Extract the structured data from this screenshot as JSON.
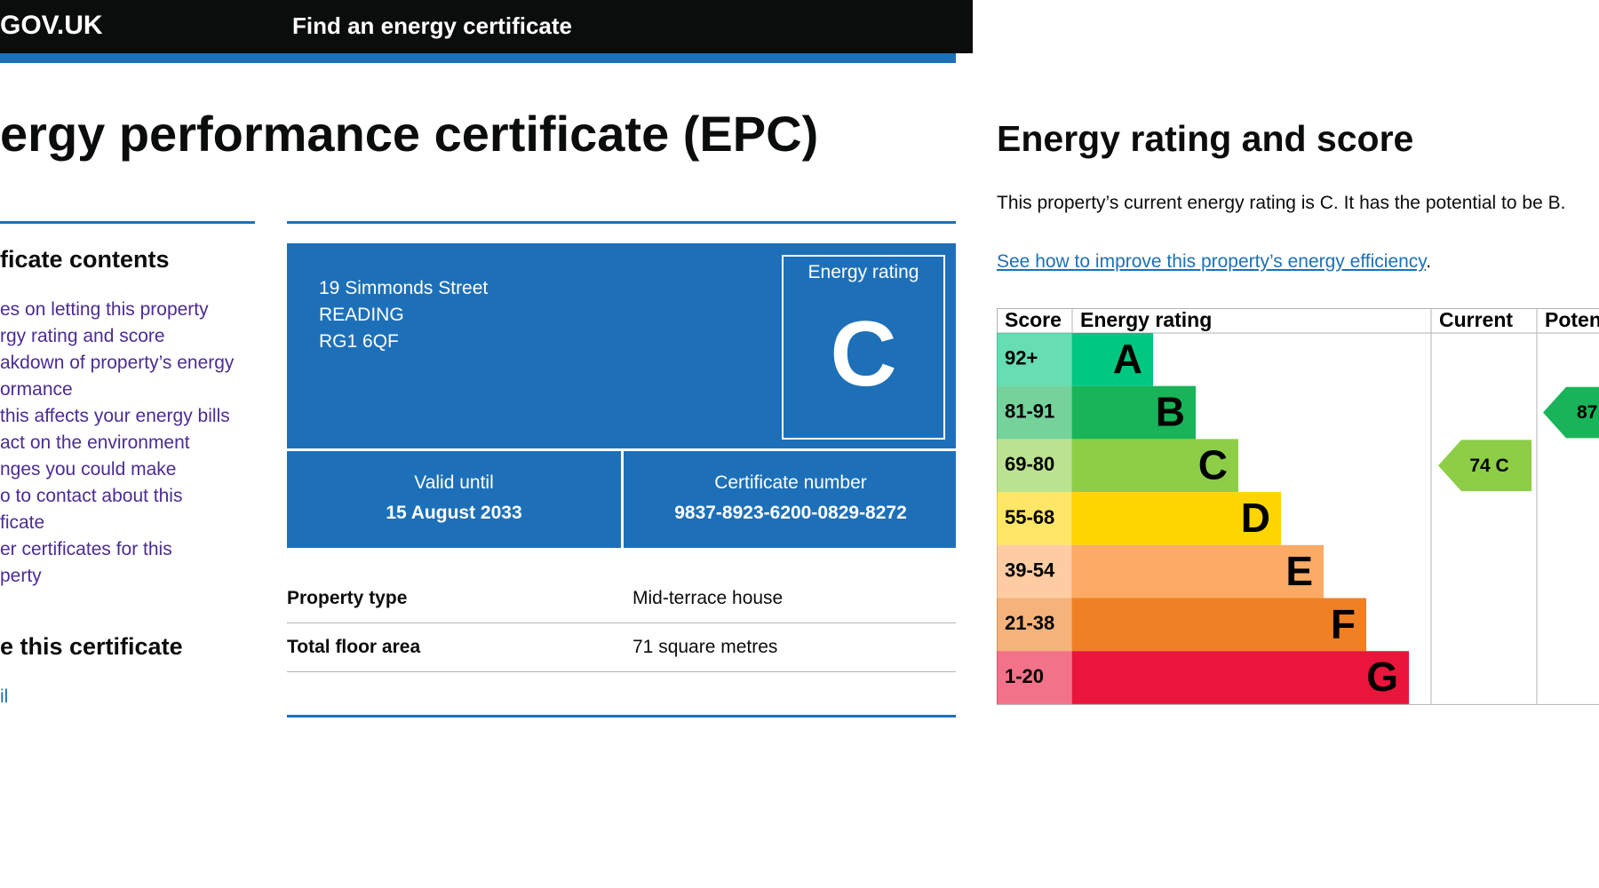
{
  "header": {
    "logo": "GOV.UK",
    "service": "Find an energy certificate"
  },
  "title": "ergy performance certificate (EPC)",
  "sidebar": {
    "heading": "ficate contents",
    "links": [
      "es on letting this property",
      "rgy rating and score",
      "akdown of property’s energy",
      "ormance",
      "this affects your energy bills",
      "act on the environment",
      "nges you could make",
      "o to contact about this",
      "ficate",
      "er certificates for this",
      "perty"
    ],
    "share_heading": "e this certificate",
    "share_links": [
      "il"
    ]
  },
  "summary": {
    "address": [
      "19 Simmonds Street",
      "READING",
      "RG1 6QF"
    ],
    "rating_label": "Energy rating",
    "rating": "C",
    "valid_label": "Valid until",
    "valid_until": "15 August 2033",
    "cert_label": "Certificate number",
    "cert_number": "9837-8923-6200-0829-8272"
  },
  "details": {
    "rows": [
      [
        "Property type",
        "Mid-terrace house"
      ],
      [
        "Total floor area",
        "71 square metres"
      ]
    ]
  },
  "rating_section": {
    "heading": "Energy rating and score",
    "text": "This property’s current energy rating is C. It has the potential to be B.",
    "link": "See how to improve this property’s energy efficiency",
    "link_end": "."
  },
  "epc": {
    "headers": [
      "Score",
      "Energy rating",
      "Current",
      "Potential"
    ],
    "bands": [
      {
        "score": "92+",
        "letter": "A",
        "color": "#00c781"
      },
      {
        "score": "81-91",
        "letter": "B",
        "color": "#19b459"
      },
      {
        "score": "69-80",
        "letter": "C",
        "color": "#8dce46"
      },
      {
        "score": "55-68",
        "letter": "D",
        "color": "#ffd500"
      },
      {
        "score": "39-54",
        "letter": "E",
        "color": "#fcaa65"
      },
      {
        "score": "21-38",
        "letter": "F",
        "color": "#ef8023"
      },
      {
        "score": "1-20",
        "letter": "G",
        "color": "#e9153b"
      }
    ],
    "current": {
      "value": 74,
      "label": "74 C"
    },
    "potential": 87
  }
}
